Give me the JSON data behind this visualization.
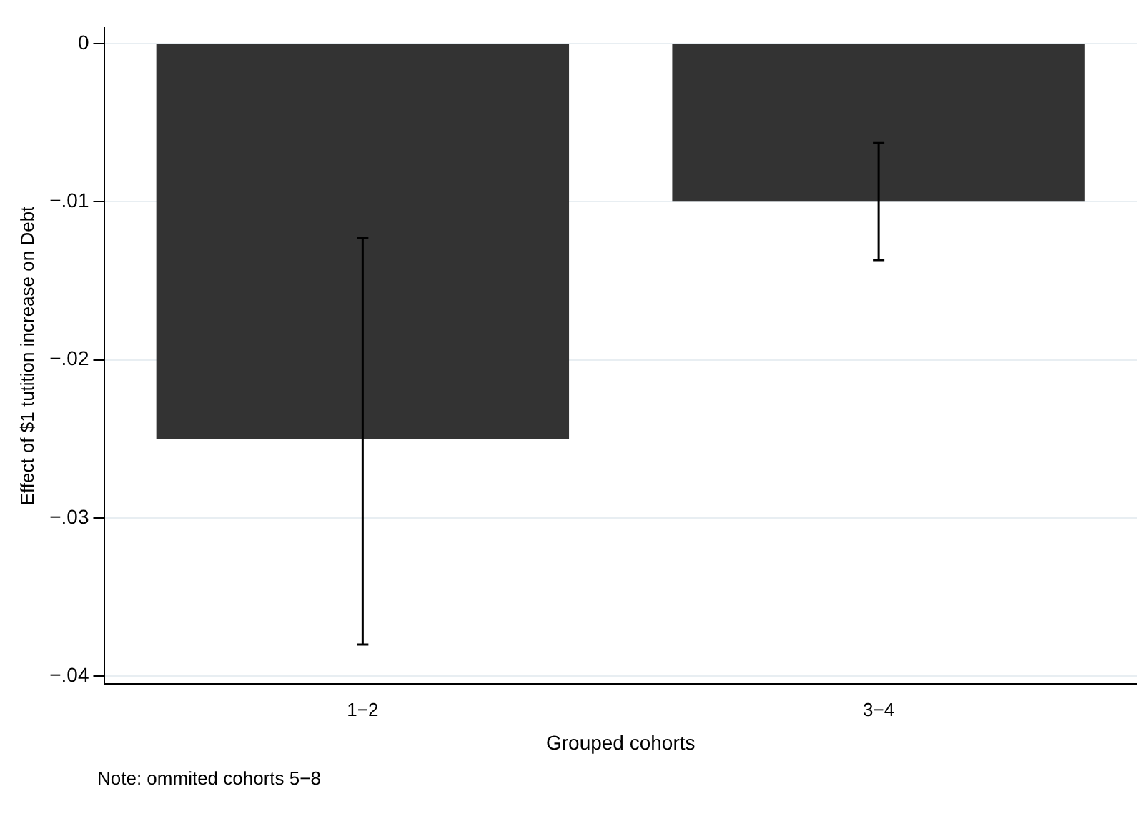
{
  "chart_data": {
    "type": "bar",
    "xlabel": "Grouped cohorts",
    "ylabel": "Effect of $1 tutition increase on Debt",
    "categories": [
      "1−2",
      "3−4"
    ],
    "values": [
      -0.025,
      -0.01
    ],
    "errors": [
      [
        -0.038,
        -0.0123
      ],
      [
        -0.0137,
        -0.0063
      ]
    ],
    "color": "#333333",
    "ylim": [
      -0.0405,
      0.001
    ],
    "yticks": [
      {
        "value": 0,
        "label": "0"
      },
      {
        "value": -0.01,
        "label": "−.01"
      },
      {
        "value": -0.02,
        "label": "−.02"
      },
      {
        "value": -0.03,
        "label": "−.03"
      },
      {
        "value": -0.04,
        "label": "−.04"
      }
    ],
    "grid": "y",
    "annotations": [
      "Note: ommited cohorts 5−8"
    ]
  }
}
